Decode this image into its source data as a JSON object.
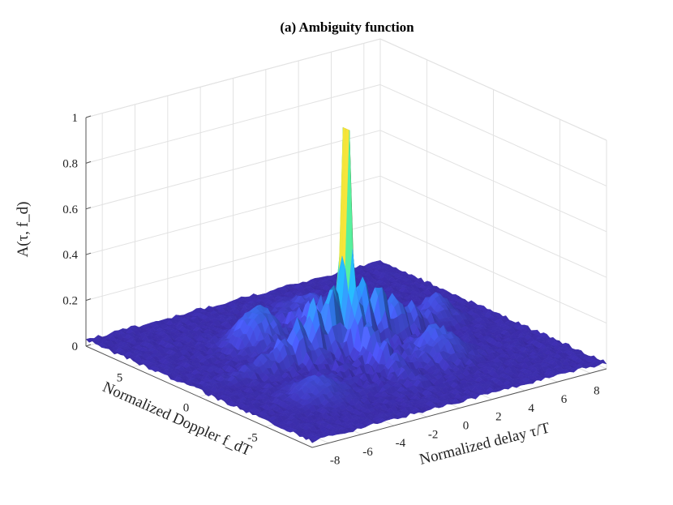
{
  "chart_data": {
    "type": "surface",
    "title": "(a) Ambiguity function",
    "xlabel": "Normalized delay τ/T",
    "ylabel": "Normalized Doppler f_dT",
    "zlabel": "A(τ, f_d)",
    "xlim": [
      -9,
      9
    ],
    "ylim": [
      -8.5,
      8.5
    ],
    "zlim": [
      0,
      1
    ],
    "xticks": [
      "-8",
      "-6",
      "-4",
      "-2",
      "0",
      "2",
      "4",
      "6",
      "8"
    ],
    "yticks": [
      "-5",
      "0",
      "5"
    ],
    "zticks": [
      "0",
      "0.2",
      "0.4",
      "0.6",
      "0.8",
      "1"
    ],
    "peak": {
      "x": 0,
      "y": 0,
      "z": 1.0
    },
    "sidelobe_level": 0.35,
    "floor_level": 0.02,
    "colormap": [
      "#3e26a8",
      "#4457e9",
      "#2a88f0",
      "#17b6c8",
      "#48cb86",
      "#c2c12f",
      "#fdbf36",
      "#f9fb15"
    ]
  }
}
